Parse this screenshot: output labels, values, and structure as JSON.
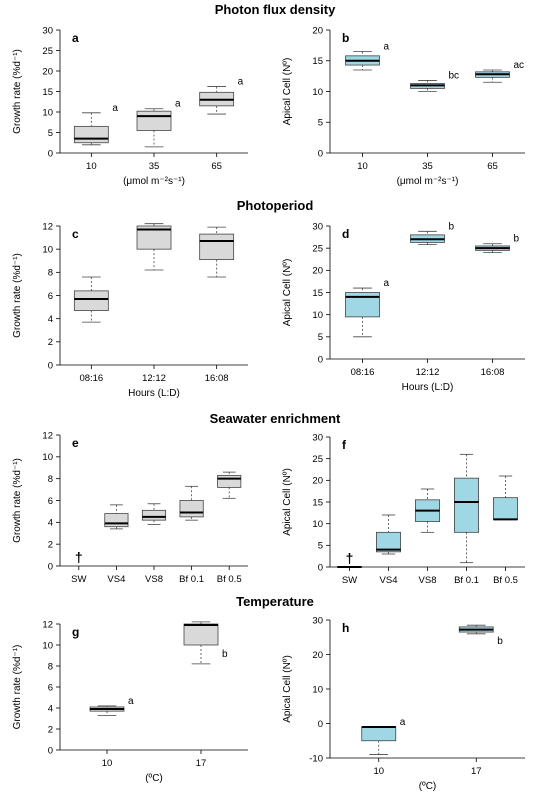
{
  "sections": [
    {
      "title": "Photon flux density"
    },
    {
      "title": "Photoperiod"
    },
    {
      "title": "Seawater enrichment"
    },
    {
      "title": "Temperature"
    }
  ],
  "colors": {
    "grey_fill": "#d9d9d9",
    "cyan_fill": "#9fd7e4",
    "stroke": "#444444",
    "median": "#000000"
  },
  "chart_data": [
    {
      "type": "box",
      "panel": "a",
      "ylabel": "Growth rate (%d⁻¹)",
      "xlabel": "(μmol m⁻²s⁻¹)",
      "categories": [
        "10",
        "35",
        "65"
      ],
      "ylim": [
        0,
        30
      ],
      "yticks": [
        0,
        5,
        10,
        15,
        20,
        25,
        30
      ],
      "fill": "grey",
      "boxes": [
        {
          "min": 2.0,
          "q1": 2.5,
          "median": 3.5,
          "q3": 6.5,
          "max": 9.8,
          "sig": "a"
        },
        {
          "min": 1.5,
          "q1": 5.5,
          "median": 9.0,
          "q3": 10.2,
          "max": 10.8,
          "sig": "a"
        },
        {
          "min": 9.5,
          "q1": 11.5,
          "median": 13.0,
          "q3": 14.8,
          "max": 16.2,
          "sig": "a"
        }
      ]
    },
    {
      "type": "box",
      "panel": "b",
      "ylabel": "Apical Cell (Nº)",
      "xlabel": "(μmol m⁻²s⁻¹)",
      "categories": [
        "10",
        "35",
        "65"
      ],
      "ylim": [
        0,
        20
      ],
      "yticks": [
        0,
        5,
        10,
        15,
        20
      ],
      "fill": "cyan",
      "boxes": [
        {
          "min": 13.5,
          "q1": 14.3,
          "median": 15.0,
          "q3": 15.8,
          "max": 16.5,
          "sig": "a"
        },
        {
          "min": 10.0,
          "q1": 10.5,
          "median": 11.0,
          "q3": 11.3,
          "max": 11.8,
          "sig": "bc"
        },
        {
          "min": 11.5,
          "q1": 12.3,
          "median": 12.8,
          "q3": 13.2,
          "max": 13.5,
          "sig": "ac"
        }
      ]
    },
    {
      "type": "box",
      "panel": "c",
      "ylabel": "Growth rate (%d⁻¹)",
      "xlabel": "Hours (L:D)",
      "categories": [
        "08:16",
        "12:12",
        "16:08"
      ],
      "ylim": [
        0,
        12
      ],
      "yticks": [
        0,
        2,
        4,
        6,
        8,
        10,
        12
      ],
      "fill": "grey",
      "boxes": [
        {
          "min": 3.7,
          "q1": 4.7,
          "median": 5.7,
          "q3": 6.4,
          "max": 7.6,
          "sig": ""
        },
        {
          "min": 8.2,
          "q1": 10.0,
          "median": 11.7,
          "q3": 12.0,
          "max": 12.2,
          "sig": ""
        },
        {
          "min": 7.6,
          "q1": 9.1,
          "median": 10.7,
          "q3": 11.3,
          "max": 11.9,
          "sig": ""
        }
      ]
    },
    {
      "type": "box",
      "panel": "d",
      "ylabel": "Apical Cell (Nº)",
      "xlabel": "Hours (L:D)",
      "categories": [
        "08:16",
        "12:12",
        "16:08"
      ],
      "ylim": [
        0,
        30
      ],
      "yticks": [
        0,
        5,
        10,
        15,
        20,
        25,
        30
      ],
      "fill": "cyan",
      "boxes": [
        {
          "min": 5.0,
          "q1": 9.5,
          "median": 14.0,
          "q3": 15.0,
          "max": 16.0,
          "sig": "a"
        },
        {
          "min": 25.8,
          "q1": 26.3,
          "median": 27.0,
          "q3": 28.0,
          "max": 28.8,
          "sig": "b"
        },
        {
          "min": 24.0,
          "q1": 24.5,
          "median": 25.0,
          "q3": 25.5,
          "max": 26.0,
          "sig": "b"
        }
      ]
    },
    {
      "type": "box",
      "panel": "e",
      "ylabel": "Growth rate (%d⁻¹)",
      "xlabel": "",
      "categories": [
        "SW",
        "VS4",
        "VS8",
        "Bf 0.1",
        "Bf 0.5"
      ],
      "ylim": [
        0,
        12
      ],
      "yticks": [
        0,
        2,
        4,
        6,
        8,
        10,
        12
      ],
      "fill": "grey",
      "boxes": [
        null,
        {
          "min": 3.4,
          "q1": 3.6,
          "median": 3.9,
          "q3": 4.8,
          "max": 5.6,
          "sig": ""
        },
        {
          "min": 3.8,
          "q1": 4.2,
          "median": 4.5,
          "q3": 5.1,
          "max": 5.7,
          "sig": ""
        },
        {
          "min": 4.2,
          "q1": 4.5,
          "median": 4.9,
          "q3": 6.0,
          "max": 7.3,
          "sig": ""
        },
        {
          "min": 6.2,
          "q1": 7.2,
          "median": 8.0,
          "q3": 8.3,
          "max": 8.6,
          "sig": ""
        }
      ],
      "dead_marker": "†"
    },
    {
      "type": "box",
      "panel": "f",
      "ylabel": "Apical Cell (Nº)",
      "xlabel": "",
      "categories": [
        "SW",
        "VS4",
        "VS8",
        "Bf 0.1",
        "Bf 0.5"
      ],
      "ylim": [
        0,
        30
      ],
      "yticks": [
        0,
        5,
        10,
        15,
        20,
        25,
        30
      ],
      "fill": "cyan",
      "boxes": [
        {
          "min": 0,
          "q1": 0,
          "median": 0,
          "q3": 0,
          "max": 0,
          "sig": ""
        },
        {
          "min": 3.0,
          "q1": 3.5,
          "median": 4.0,
          "q3": 8.0,
          "max": 12.0,
          "sig": ""
        },
        {
          "min": 8.0,
          "q1": 10.5,
          "median": 13.0,
          "q3": 15.5,
          "max": 18.0,
          "sig": ""
        },
        {
          "min": 1.0,
          "q1": 8.0,
          "median": 15.0,
          "q3": 20.5,
          "max": 26.0,
          "sig": ""
        },
        {
          "min": 11.0,
          "q1": 11.0,
          "median": 11.0,
          "q3": 16.0,
          "max": 21.0,
          "sig": ""
        }
      ],
      "dead_marker": "†"
    },
    {
      "type": "box",
      "panel": "g",
      "ylabel": "Growth rate (%d⁻¹)",
      "xlabel": "(ºC)",
      "categories": [
        "10",
        "17"
      ],
      "ylim": [
        0,
        12
      ],
      "yticks": [
        0,
        2,
        4,
        6,
        8,
        10,
        12
      ],
      "fill": "grey",
      "boxes": [
        {
          "min": 3.3,
          "q1": 3.7,
          "median": 3.9,
          "q3": 4.1,
          "max": 4.2,
          "sig": "a"
        },
        {
          "min": 8.2,
          "q1": 10.0,
          "median": 11.9,
          "q3": 12.0,
          "max": 12.2,
          "sig": "b"
        }
      ]
    },
    {
      "type": "box",
      "panel": "h",
      "ylabel": "Apical Cell (Nº)",
      "xlabel": "(ºC)",
      "categories": [
        "10",
        "17"
      ],
      "ylim": [
        -10,
        30
      ],
      "yticks": [
        -10,
        0,
        10,
        20,
        30
      ],
      "fill": "cyan",
      "boxes": [
        {
          "min": -9.0,
          "q1": -5.0,
          "median": -1.0,
          "q3": -1.0,
          "max": -1.0,
          "sig": "a"
        },
        {
          "min": 26.0,
          "q1": 26.5,
          "median": 27.2,
          "q3": 28.0,
          "max": 28.5,
          "sig": "b"
        }
      ]
    }
  ]
}
